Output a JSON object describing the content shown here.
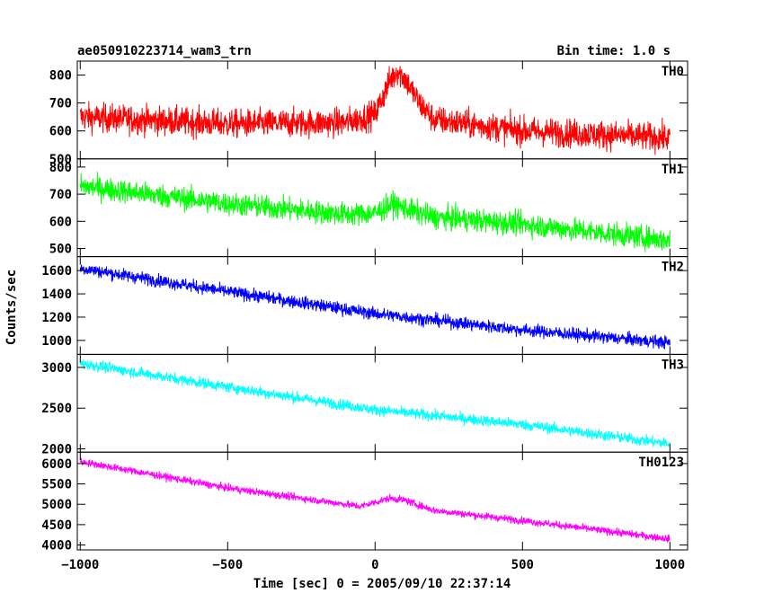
{
  "header": {
    "left_title": "ae050910223714_wam3_trn",
    "right_title": "Bin time: 1.0 s"
  },
  "chart_data": {
    "type": "line",
    "xlabel": "Time [sec] 0 = 2005/09/10 22:37:14",
    "ylabel": "Counts/sec",
    "xlim": [
      -1010,
      1060
    ],
    "xticks": [
      -1000,
      -500,
      0,
      500,
      1000
    ],
    "xtick_labels": [
      "−1000",
      "−500",
      "0",
      "500",
      "1000"
    ],
    "bin_time_s": 1.0,
    "series": [
      {
        "name": "TH0",
        "color": "#ff0000",
        "ylim": [
          500,
          850
        ],
        "yticks": [
          500,
          600,
          700,
          800
        ],
        "points": [
          [
            -1000,
            650
          ],
          [
            -500,
            625
          ],
          [
            -100,
            630
          ],
          [
            0,
            660
          ],
          [
            50,
            780
          ],
          [
            75,
            815
          ],
          [
            100,
            790
          ],
          [
            150,
            700
          ],
          [
            200,
            640
          ],
          [
            500,
            600
          ],
          [
            1000,
            575
          ]
        ],
        "noise": 42
      },
      {
        "name": "TH1",
        "color": "#00ff00",
        "ylim": [
          470,
          830
        ],
        "yticks": [
          500,
          600,
          700,
          800
        ],
        "points": [
          [
            -1000,
            730
          ],
          [
            -500,
            665
          ],
          [
            -100,
            625
          ],
          [
            0,
            630
          ],
          [
            60,
            665
          ],
          [
            120,
            640
          ],
          [
            200,
            615
          ],
          [
            500,
            590
          ],
          [
            1000,
            530
          ]
        ],
        "noise": 35
      },
      {
        "name": "TH2",
        "color": "#0000ff",
        "ylim": [
          880,
          1720
        ],
        "yticks": [
          1000,
          1200,
          1400,
          1600
        ],
        "points": [
          [
            -1000,
            1620
          ],
          [
            -500,
            1420
          ],
          [
            0,
            1230
          ],
          [
            500,
            1090
          ],
          [
            1000,
            980
          ]
        ],
        "noise": 45
      },
      {
        "name": "TH3",
        "color": "#00ffff",
        "ylim": [
          1960,
          3160
        ],
        "yticks": [
          2000,
          2500,
          3000
        ],
        "points": [
          [
            -1000,
            3050
          ],
          [
            -500,
            2760
          ],
          [
            0,
            2480
          ],
          [
            500,
            2300
          ],
          [
            1000,
            2060
          ]
        ],
        "noise": 55
      },
      {
        "name": "TH0123",
        "color": "#ff00ff",
        "ylim": [
          3880,
          6280
        ],
        "yticks": [
          4000,
          4500,
          5000,
          5500,
          6000
        ],
        "points": [
          [
            -1000,
            6050
          ],
          [
            -500,
            5400
          ],
          [
            -50,
            4950
          ],
          [
            50,
            5150
          ],
          [
            100,
            5100
          ],
          [
            200,
            4850
          ],
          [
            500,
            4600
          ],
          [
            1000,
            4150
          ]
        ],
        "noise": 75
      }
    ]
  }
}
